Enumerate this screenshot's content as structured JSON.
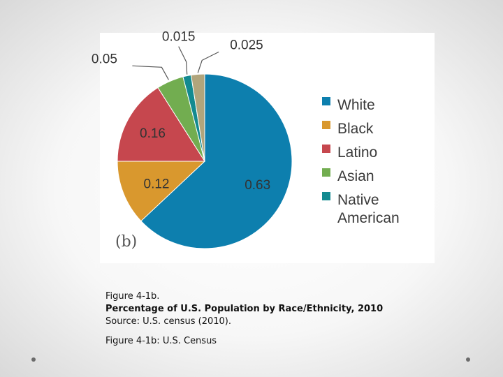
{
  "chart_data": {
    "type": "pie",
    "panel_label": "(b)",
    "slices": [
      {
        "name": "White",
        "value": 0.63,
        "label": "0.63",
        "color": "#0d7fae"
      },
      {
        "name": "Black",
        "value": 0.12,
        "label": "0.12",
        "color": "#d9982e"
      },
      {
        "name": "Latino",
        "value": 0.16,
        "label": "0.16",
        "color": "#c6474e"
      },
      {
        "name": "Asian",
        "value": 0.05,
        "label": "0.05",
        "color": "#72ad50"
      },
      {
        "name": "Native American",
        "value": 0.015,
        "label": "0.015",
        "color": "#138a90"
      },
      {
        "name": "",
        "value": 0.025,
        "label": "0.025",
        "color": "#b1a57c"
      }
    ],
    "legend": [
      {
        "lines": [
          "White"
        ],
        "color": "#0d7fae"
      },
      {
        "lines": [
          "Black"
        ],
        "color": "#d9982e"
      },
      {
        "lines": [
          "Latino"
        ],
        "color": "#c6474e"
      },
      {
        "lines": [
          "Asian"
        ],
        "color": "#72ad50"
      },
      {
        "lines": [
          "Native",
          "American"
        ],
        "color": "#138a90"
      }
    ],
    "legend_position": "right"
  },
  "caption": {
    "figure_id": "Figure 4-1b.",
    "title": "Percentage of U.S. Population by Race/Ethnicity, 2010",
    "source": "Source: U.S. census (2010).",
    "credit": "Figure 4-1b: U.S. Census"
  }
}
